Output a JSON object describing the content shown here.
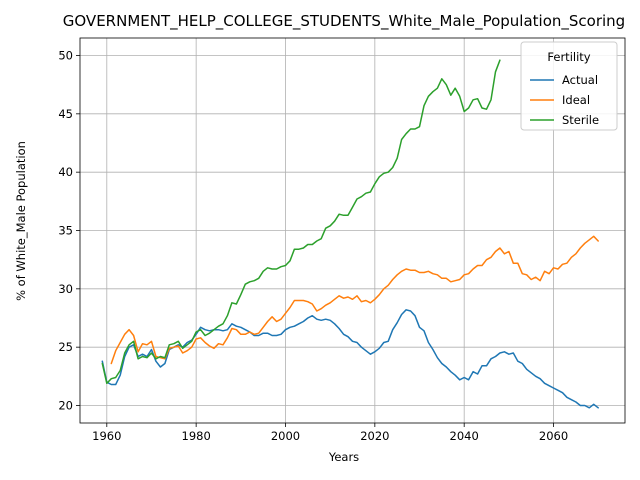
{
  "chart_data": {
    "type": "line",
    "title": "GOVERNMENT_HELP_COLLEGE_STUDENTS_White_Male_Population_Scoring",
    "xlabel": "Years",
    "ylabel": "% of White_Male Population",
    "xlim": [
      1954,
      2076
    ],
    "ylim": [
      18.5,
      51.5
    ],
    "xticks": [
      1960,
      1980,
      2000,
      2020,
      2040,
      2060
    ],
    "yticks": [
      20,
      25,
      30,
      35,
      40,
      45,
      50
    ],
    "grid": true,
    "legend": {
      "title": "Fertility",
      "placement": "top-right"
    },
    "series": [
      {
        "name": "Actual",
        "color": "#1f77b4",
        "points": [
          [
            1959,
            23.8
          ],
          [
            1960,
            22.0
          ],
          [
            1961,
            21.8
          ],
          [
            1962,
            21.8
          ],
          [
            1963,
            22.6
          ],
          [
            1964,
            24.2
          ],
          [
            1965,
            25.0
          ],
          [
            1966,
            25.2
          ],
          [
            1967,
            24.2
          ],
          [
            1968,
            24.4
          ],
          [
            1969,
            24.2
          ],
          [
            1970,
            24.8
          ],
          [
            1971,
            23.8
          ],
          [
            1972,
            23.3
          ],
          [
            1973,
            23.6
          ],
          [
            1974,
            24.8
          ],
          [
            1975,
            25.0
          ],
          [
            1976,
            25.2
          ],
          [
            1977,
            25.0
          ],
          [
            1978,
            25.4
          ],
          [
            1979,
            25.6
          ],
          [
            1980,
            26.1
          ],
          [
            1981,
            26.7
          ],
          [
            1982,
            26.5
          ],
          [
            1983,
            26.4
          ],
          [
            1984,
            26.5
          ],
          [
            1985,
            26.5
          ],
          [
            1986,
            26.4
          ],
          [
            1987,
            26.5
          ],
          [
            1988,
            27.0
          ],
          [
            1989,
            26.8
          ],
          [
            1990,
            26.7
          ],
          [
            1991,
            26.5
          ],
          [
            1992,
            26.3
          ],
          [
            1993,
            26.0
          ],
          [
            1994,
            26.0
          ],
          [
            1995,
            26.2
          ],
          [
            1996,
            26.2
          ],
          [
            1997,
            26.0
          ],
          [
            1998,
            26.0
          ],
          [
            1999,
            26.1
          ],
          [
            2000,
            26.5
          ],
          [
            2001,
            26.7
          ],
          [
            2002,
            26.8
          ],
          [
            2003,
            27.0
          ],
          [
            2004,
            27.2
          ],
          [
            2005,
            27.5
          ],
          [
            2006,
            27.7
          ],
          [
            2007,
            27.4
          ],
          [
            2008,
            27.3
          ],
          [
            2009,
            27.4
          ],
          [
            2010,
            27.3
          ],
          [
            2011,
            27.0
          ],
          [
            2012,
            26.6
          ],
          [
            2013,
            26.1
          ],
          [
            2014,
            25.9
          ],
          [
            2015,
            25.5
          ],
          [
            2016,
            25.4
          ],
          [
            2017,
            25.0
          ],
          [
            2018,
            24.7
          ],
          [
            2019,
            24.4
          ],
          [
            2020,
            24.6
          ],
          [
            2021,
            24.9
          ],
          [
            2022,
            25.4
          ],
          [
            2023,
            25.5
          ],
          [
            2024,
            26.5
          ],
          [
            2025,
            27.1
          ],
          [
            2026,
            27.8
          ],
          [
            2027,
            28.2
          ],
          [
            2028,
            28.1
          ],
          [
            2029,
            27.7
          ],
          [
            2030,
            26.7
          ],
          [
            2031,
            26.4
          ],
          [
            2032,
            25.4
          ],
          [
            2033,
            24.8
          ],
          [
            2034,
            24.1
          ],
          [
            2035,
            23.6
          ],
          [
            2036,
            23.3
          ],
          [
            2037,
            22.9
          ],
          [
            2038,
            22.6
          ],
          [
            2039,
            22.2
          ],
          [
            2040,
            22.4
          ],
          [
            2041,
            22.2
          ],
          [
            2042,
            22.9
          ],
          [
            2043,
            22.7
          ],
          [
            2044,
            23.4
          ],
          [
            2045,
            23.4
          ],
          [
            2046,
            24.0
          ],
          [
            2047,
            24.2
          ],
          [
            2048,
            24.5
          ],
          [
            2049,
            24.6
          ],
          [
            2050,
            24.4
          ],
          [
            2051,
            24.5
          ],
          [
            2052,
            23.8
          ],
          [
            2053,
            23.6
          ],
          [
            2054,
            23.1
          ],
          [
            2055,
            22.8
          ],
          [
            2056,
            22.5
          ],
          [
            2057,
            22.3
          ],
          [
            2058,
            21.9
          ],
          [
            2059,
            21.7
          ],
          [
            2060,
            21.5
          ],
          [
            2061,
            21.3
          ],
          [
            2062,
            21.1
          ],
          [
            2063,
            20.7
          ],
          [
            2064,
            20.5
          ],
          [
            2065,
            20.3
          ],
          [
            2066,
            20.0
          ],
          [
            2067,
            20.0
          ],
          [
            2068,
            19.8
          ],
          [
            2069,
            20.1
          ],
          [
            2070,
            19.8
          ]
        ]
      },
      {
        "name": "Ideal",
        "color": "#ff7f0e",
        "points": [
          [
            1961,
            23.6
          ],
          [
            1962,
            24.7
          ],
          [
            1963,
            25.4
          ],
          [
            1964,
            26.1
          ],
          [
            1965,
            26.5
          ],
          [
            1966,
            26.0
          ],
          [
            1967,
            24.6
          ],
          [
            1968,
            25.3
          ],
          [
            1969,
            25.2
          ],
          [
            1970,
            25.5
          ],
          [
            1971,
            24.2
          ],
          [
            1972,
            24.1
          ],
          [
            1973,
            24.0
          ],
          [
            1974,
            24.9
          ],
          [
            1975,
            25.0
          ],
          [
            1976,
            25.1
          ],
          [
            1977,
            24.5
          ],
          [
            1978,
            24.7
          ],
          [
            1979,
            25.0
          ],
          [
            1980,
            25.7
          ],
          [
            1981,
            25.8
          ],
          [
            1982,
            25.4
          ],
          [
            1983,
            25.1
          ],
          [
            1984,
            24.9
          ],
          [
            1985,
            25.3
          ],
          [
            1986,
            25.2
          ],
          [
            1987,
            25.8
          ],
          [
            1988,
            26.6
          ],
          [
            1989,
            26.5
          ],
          [
            1990,
            26.1
          ],
          [
            1991,
            26.1
          ],
          [
            1992,
            26.3
          ],
          [
            1993,
            26.1
          ],
          [
            1994,
            26.2
          ],
          [
            1995,
            26.7
          ],
          [
            1996,
            27.2
          ],
          [
            1997,
            27.6
          ],
          [
            1998,
            27.2
          ],
          [
            1999,
            27.4
          ],
          [
            2000,
            27.9
          ],
          [
            2001,
            28.4
          ],
          [
            2002,
            29.0
          ],
          [
            2003,
            29.0
          ],
          [
            2004,
            29.0
          ],
          [
            2005,
            28.9
          ],
          [
            2006,
            28.7
          ],
          [
            2007,
            28.1
          ],
          [
            2008,
            28.3
          ],
          [
            2009,
            28.6
          ],
          [
            2010,
            28.8
          ],
          [
            2011,
            29.1
          ],
          [
            2012,
            29.4
          ],
          [
            2013,
            29.2
          ],
          [
            2014,
            29.3
          ],
          [
            2015,
            29.1
          ],
          [
            2016,
            29.4
          ],
          [
            2017,
            28.9
          ],
          [
            2018,
            29.0
          ],
          [
            2019,
            28.8
          ],
          [
            2020,
            29.1
          ],
          [
            2021,
            29.5
          ],
          [
            2022,
            30.0
          ],
          [
            2023,
            30.3
          ],
          [
            2024,
            30.8
          ],
          [
            2025,
            31.2
          ],
          [
            2026,
            31.5
          ],
          [
            2027,
            31.7
          ],
          [
            2028,
            31.6
          ],
          [
            2029,
            31.6
          ],
          [
            2030,
            31.4
          ],
          [
            2031,
            31.4
          ],
          [
            2032,
            31.5
          ],
          [
            2033,
            31.3
          ],
          [
            2034,
            31.2
          ],
          [
            2035,
            30.9
          ],
          [
            2036,
            30.9
          ],
          [
            2037,
            30.6
          ],
          [
            2038,
            30.7
          ],
          [
            2039,
            30.8
          ],
          [
            2040,
            31.2
          ],
          [
            2041,
            31.3
          ],
          [
            2042,
            31.7
          ],
          [
            2043,
            32.0
          ],
          [
            2044,
            32.0
          ],
          [
            2045,
            32.5
          ],
          [
            2046,
            32.7
          ],
          [
            2047,
            33.2
          ],
          [
            2048,
            33.5
          ],
          [
            2049,
            33.0
          ],
          [
            2050,
            33.2
          ],
          [
            2051,
            32.2
          ],
          [
            2052,
            32.2
          ],
          [
            2053,
            31.3
          ],
          [
            2054,
            31.2
          ],
          [
            2055,
            30.8
          ],
          [
            2056,
            31.0
          ],
          [
            2057,
            30.7
          ],
          [
            2058,
            31.5
          ],
          [
            2059,
            31.3
          ],
          [
            2060,
            31.8
          ],
          [
            2061,
            31.7
          ],
          [
            2062,
            32.1
          ],
          [
            2063,
            32.2
          ],
          [
            2064,
            32.7
          ],
          [
            2065,
            33.0
          ],
          [
            2066,
            33.5
          ],
          [
            2067,
            33.9
          ],
          [
            2068,
            34.2
          ],
          [
            2069,
            34.5
          ],
          [
            2070,
            34.1
          ]
        ]
      },
      {
        "name": "Sterile",
        "color": "#2ca02c",
        "points": [
          [
            1959,
            23.6
          ],
          [
            1960,
            21.9
          ],
          [
            1961,
            22.3
          ],
          [
            1962,
            22.4
          ],
          [
            1963,
            23.0
          ],
          [
            1964,
            24.5
          ],
          [
            1965,
            25.2
          ],
          [
            1966,
            25.5
          ],
          [
            1967,
            24.0
          ],
          [
            1968,
            24.2
          ],
          [
            1969,
            24.1
          ],
          [
            1970,
            24.5
          ],
          [
            1971,
            24.0
          ],
          [
            1972,
            24.2
          ],
          [
            1973,
            24.1
          ],
          [
            1974,
            25.2
          ],
          [
            1975,
            25.3
          ],
          [
            1976,
            25.5
          ],
          [
            1977,
            24.9
          ],
          [
            1978,
            25.2
          ],
          [
            1979,
            25.5
          ],
          [
            1980,
            26.3
          ],
          [
            1981,
            26.5
          ],
          [
            1982,
            26.0
          ],
          [
            1983,
            26.2
          ],
          [
            1984,
            26.5
          ],
          [
            1985,
            26.8
          ],
          [
            1986,
            27.0
          ],
          [
            1987,
            27.7
          ],
          [
            1988,
            28.8
          ],
          [
            1989,
            28.7
          ],
          [
            1990,
            29.5
          ],
          [
            1991,
            30.4
          ],
          [
            1992,
            30.6
          ],
          [
            1993,
            30.7
          ],
          [
            1994,
            30.9
          ],
          [
            1995,
            31.5
          ],
          [
            1996,
            31.8
          ],
          [
            1997,
            31.7
          ],
          [
            1998,
            31.7
          ],
          [
            1999,
            31.9
          ],
          [
            2000,
            32.0
          ],
          [
            2001,
            32.4
          ],
          [
            2002,
            33.4
          ],
          [
            2003,
            33.4
          ],
          [
            2004,
            33.5
          ],
          [
            2005,
            33.8
          ],
          [
            2006,
            33.8
          ],
          [
            2007,
            34.1
          ],
          [
            2008,
            34.3
          ],
          [
            2009,
            35.2
          ],
          [
            2010,
            35.4
          ],
          [
            2011,
            35.8
          ],
          [
            2012,
            36.4
          ],
          [
            2013,
            36.3
          ],
          [
            2014,
            36.3
          ],
          [
            2015,
            37.0
          ],
          [
            2016,
            37.7
          ],
          [
            2017,
            37.9
          ],
          [
            2018,
            38.2
          ],
          [
            2019,
            38.3
          ],
          [
            2020,
            39.0
          ],
          [
            2021,
            39.6
          ],
          [
            2022,
            39.9
          ],
          [
            2023,
            40.0
          ],
          [
            2024,
            40.4
          ],
          [
            2025,
            41.2
          ],
          [
            2026,
            42.8
          ],
          [
            2027,
            43.3
          ],
          [
            2028,
            43.7
          ],
          [
            2029,
            43.7
          ],
          [
            2030,
            43.9
          ],
          [
            2031,
            45.7
          ],
          [
            2032,
            46.5
          ],
          [
            2033,
            46.9
          ],
          [
            2034,
            47.2
          ],
          [
            2035,
            48.0
          ],
          [
            2036,
            47.5
          ],
          [
            2037,
            46.6
          ],
          [
            2038,
            47.2
          ],
          [
            2039,
            46.5
          ],
          [
            2040,
            45.2
          ],
          [
            2041,
            45.5
          ],
          [
            2042,
            46.2
          ],
          [
            2043,
            46.3
          ],
          [
            2044,
            45.5
          ],
          [
            2045,
            45.4
          ],
          [
            2046,
            46.2
          ],
          [
            2047,
            48.6
          ],
          [
            2048,
            49.6
          ]
        ]
      }
    ]
  }
}
